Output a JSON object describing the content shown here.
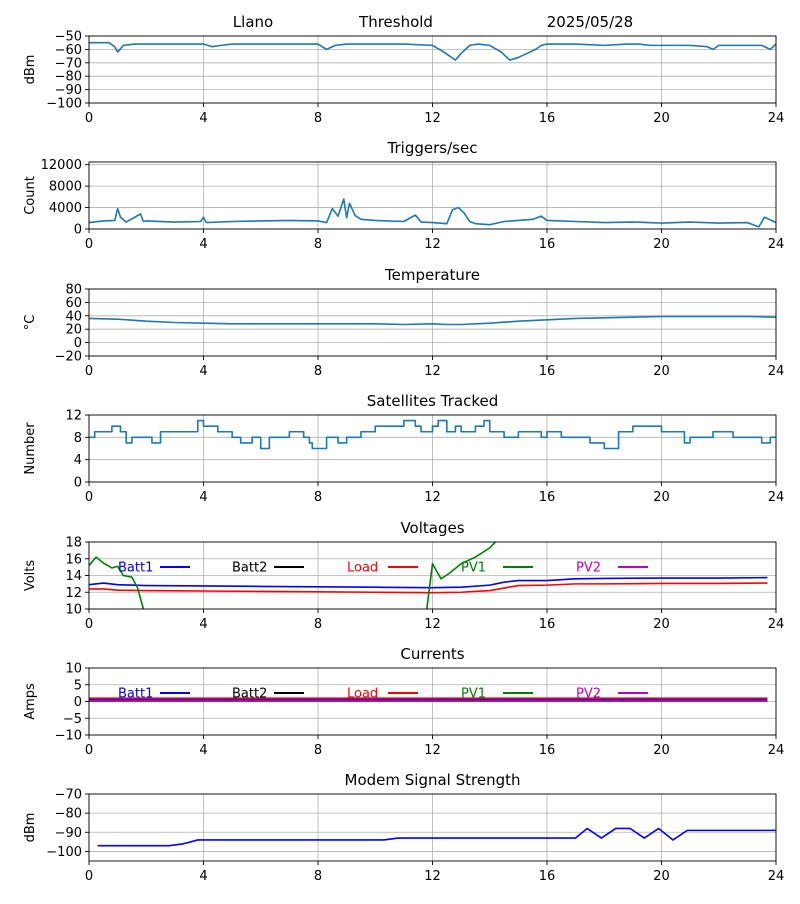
{
  "colors": {
    "default_series": "#1f77b4",
    "batt1": "#0000ff",
    "batt2": "#000000",
    "load": "#ff0000",
    "pv1": "#008000",
    "pv2": "#bf00bf",
    "grid": "#b0b0b0"
  },
  "header": {
    "site": "Llano",
    "label": "Threshold",
    "date": "2025/05/28"
  },
  "chart_data": [
    {
      "id": "threshold",
      "type": "line",
      "title": "",
      "xlabel": "",
      "ylabel": "dBm",
      "xlim": [
        0,
        24
      ],
      "ylim": [
        -100,
        -50
      ],
      "xticks": [
        0,
        4,
        8,
        12,
        16,
        20,
        24
      ],
      "yticks": [
        -100,
        -90,
        -80,
        -70,
        -60,
        -50
      ],
      "grid": true,
      "series": [
        {
          "color": "#1f77b4",
          "x": [
            0,
            0.7,
            0.9,
            1.0,
            1.2,
            1.6,
            2.0,
            4.0,
            4.3,
            4.6,
            5.0,
            7.0,
            8.0,
            8.3,
            8.6,
            9.0,
            10.0,
            11.0,
            12.0,
            12.4,
            12.8,
            13.0,
            13.3,
            13.6,
            14.0,
            14.4,
            14.7,
            15.0,
            15.3,
            15.6,
            15.8,
            16.0,
            17.0,
            18.0,
            18.8,
            19.2,
            19.6,
            20.0,
            21.0,
            21.6,
            21.8,
            22.0,
            23.0,
            23.5,
            23.8,
            24.0
          ],
          "y": [
            -55,
            -55,
            -58,
            -62,
            -57,
            -56,
            -56,
            -56,
            -58,
            -57,
            -56,
            -56,
            -56,
            -60,
            -57,
            -56,
            -56,
            -56,
            -57,
            -62,
            -68,
            -63,
            -57,
            -56,
            -57,
            -62,
            -68,
            -66,
            -63,
            -60,
            -57,
            -56,
            -56,
            -57,
            -56,
            -56,
            -57,
            -57,
            -57,
            -58,
            -60,
            -57,
            -57,
            -57,
            -60,
            -56
          ]
        }
      ]
    },
    {
      "id": "triggers",
      "type": "line",
      "title": "Triggers/sec",
      "xlabel": "",
      "ylabel": "Count",
      "xlim": [
        0,
        24
      ],
      "ylim": [
        0,
        12500
      ],
      "xticks": [
        0,
        4,
        8,
        12,
        16,
        20,
        24
      ],
      "yticks": [
        0,
        4000,
        8000,
        12000
      ],
      "grid": true,
      "series": [
        {
          "color": "#1f77b4",
          "x": [
            0,
            0.5,
            0.9,
            1.0,
            1.1,
            1.3,
            1.8,
            1.9,
            2.0,
            3.0,
            3.9,
            4.0,
            4.1,
            5.0,
            6.0,
            7.0,
            8.0,
            8.3,
            8.5,
            8.7,
            8.9,
            9.0,
            9.1,
            9.3,
            9.5,
            10.0,
            11.0,
            11.4,
            11.6,
            12.0,
            12.5,
            12.7,
            12.9,
            13.1,
            13.3,
            13.5,
            14.0,
            14.5,
            15.0,
            15.5,
            15.8,
            16.0,
            17.0,
            18.0,
            19.0,
            20.0,
            21.0,
            22.0,
            23.0,
            23.4,
            23.6,
            24.0
          ],
          "y": [
            1200,
            1500,
            1600,
            3800,
            2200,
            1300,
            2800,
            1400,
            1500,
            1300,
            1400,
            2200,
            1200,
            1400,
            1500,
            1600,
            1500,
            1200,
            3800,
            2400,
            5600,
            2100,
            4800,
            2500,
            1800,
            1600,
            1400,
            2600,
            1300,
            1200,
            1000,
            3600,
            4000,
            3000,
            1400,
            1000,
            800,
            1400,
            1600,
            1800,
            2400,
            1600,
            1400,
            1200,
            1300,
            1100,
            1300,
            1100,
            1200,
            400,
            2200,
            1200
          ]
        }
      ]
    },
    {
      "id": "temperature",
      "type": "line",
      "title": "Temperature",
      "xlabel": "",
      "ylabel": "°C",
      "xlim": [
        0,
        24
      ],
      "ylim": [
        -20,
        80
      ],
      "xticks": [
        0,
        4,
        8,
        12,
        16,
        20,
        24
      ],
      "yticks": [
        -20,
        0,
        20,
        40,
        60,
        80
      ],
      "grid": true,
      "series": [
        {
          "color": "#1f77b4",
          "x": [
            0,
            1.0,
            2.0,
            3.0,
            4.0,
            5.0,
            6.0,
            7.0,
            8.0,
            9.0,
            10.0,
            11.0,
            12.0,
            12.5,
            13.0,
            14.0,
            15.0,
            16.0,
            17.0,
            18.0,
            19.0,
            20.0,
            21.0,
            22.0,
            23.0,
            24.0
          ],
          "y": [
            36,
            35,
            32,
            30,
            29,
            28,
            28,
            28,
            28,
            28,
            28,
            27,
            28,
            27,
            27,
            29,
            32,
            34,
            36,
            37,
            38,
            39,
            39,
            39,
            39,
            38
          ]
        }
      ]
    },
    {
      "id": "satellites",
      "type": "line",
      "title": "Satellites Tracked",
      "xlabel": "",
      "ylabel": "Number",
      "xlim": [
        0,
        24
      ],
      "ylim": [
        0,
        12
      ],
      "xticks": [
        0,
        4,
        8,
        12,
        16,
        20,
        24
      ],
      "yticks": [
        0,
        4,
        8,
        12
      ],
      "grid": true,
      "step": true,
      "series": [
        {
          "color": "#1f77b4",
          "x": [
            0,
            0.2,
            0.8,
            1.1,
            1.3,
            1.5,
            2.2,
            2.5,
            3.5,
            3.8,
            4.0,
            4.5,
            5.0,
            5.3,
            5.7,
            6.0,
            6.3,
            6.5,
            7.0,
            7.5,
            7.7,
            7.8,
            8.3,
            8.7,
            9.0,
            9.5,
            10.0,
            10.5,
            11.0,
            11.4,
            11.6,
            12.0,
            12.2,
            12.5,
            12.8,
            13.0,
            13.5,
            13.8,
            14.0,
            14.5,
            15.0,
            15.5,
            15.8,
            16.0,
            16.5,
            17.0,
            17.5,
            18.0,
            18.5,
            19.0,
            19.5,
            20.0,
            20.5,
            20.8,
            21.0,
            21.5,
            21.8,
            22.0,
            22.5,
            23.0,
            23.5,
            23.8,
            24.0
          ],
          "y": [
            8,
            9,
            10,
            9,
            7,
            8,
            7,
            9,
            9,
            11,
            10,
            9,
            8,
            7,
            8,
            6,
            8,
            8,
            9,
            8,
            7,
            6,
            8,
            7,
            8,
            9,
            10,
            10,
            11,
            10,
            9,
            10,
            11,
            9,
            10,
            9,
            10,
            11,
            9,
            8,
            9,
            9,
            8,
            9,
            8,
            8,
            7,
            6,
            9,
            10,
            10,
            9,
            9,
            7,
            8,
            8,
            9,
            9,
            8,
            8,
            7,
            8,
            8
          ]
        }
      ]
    },
    {
      "id": "voltages",
      "type": "line",
      "title": "Voltages",
      "xlabel": "",
      "ylabel": "Volts",
      "xlim": [
        0,
        24
      ],
      "ylim": [
        10,
        18
      ],
      "xticks": [
        0,
        4,
        8,
        12,
        16,
        20,
        24
      ],
      "yticks": [
        10,
        12,
        14,
        16,
        18
      ],
      "grid": true,
      "legend_placement": "top, inline",
      "series": [
        {
          "name": "Batt1",
          "color": "#0000ff",
          "x": [
            0,
            0.5,
            1.0,
            2.0,
            4.0,
            6.0,
            8.0,
            10.0,
            12.0,
            13.0,
            14.0,
            14.5,
            15.0,
            16.0,
            17.0,
            18.0,
            20.0,
            22.0,
            23.7
          ],
          "y": [
            12.9,
            13.1,
            12.9,
            12.8,
            12.75,
            12.7,
            12.65,
            12.6,
            12.55,
            12.6,
            12.85,
            13.2,
            13.4,
            13.4,
            13.6,
            13.65,
            13.7,
            13.7,
            13.75
          ]
        },
        {
          "name": "Batt2",
          "color": "#000000",
          "x": [],
          "y": []
        },
        {
          "name": "Load",
          "color": "#ff0000",
          "x": [
            0,
            0.5,
            1.0,
            2.0,
            4.0,
            6.0,
            8.0,
            10.0,
            12.0,
            13.0,
            14.0,
            14.5,
            15.0,
            16.0,
            17.0,
            18.0,
            20.0,
            22.0,
            23.7
          ],
          "y": [
            12.4,
            12.4,
            12.25,
            12.2,
            12.15,
            12.1,
            12.05,
            12.0,
            11.95,
            12.0,
            12.2,
            12.5,
            12.8,
            12.85,
            13.0,
            13.0,
            13.05,
            13.05,
            13.1
          ]
        },
        {
          "name": "PV1",
          "color": "#008000",
          "x": [
            0,
            0.25,
            0.5,
            0.8,
            1.0,
            1.2,
            1.5,
            1.7,
            1.9,
            1.95,
            2.0,
            11.7,
            11.8,
            12.0,
            12.3,
            12.6,
            13.0,
            13.5,
            14.0,
            14.2
          ],
          "y": [
            15.2,
            16.2,
            15.5,
            14.9,
            15.1,
            14.0,
            13.8,
            12.5,
            10.0,
            9.5,
            9.0,
            9.0,
            10.0,
            15.4,
            13.6,
            14.3,
            15.4,
            16.2,
            17.3,
            18.0
          ]
        },
        {
          "name": "PV2",
          "color": "#bf00bf",
          "x": [],
          "y": []
        }
      ]
    },
    {
      "id": "currents",
      "type": "line",
      "title": "Currents",
      "xlabel": "",
      "ylabel": "Amps",
      "xlim": [
        0,
        24
      ],
      "ylim": [
        -10,
        10
      ],
      "xticks": [
        0,
        4,
        8,
        12,
        16,
        20,
        24
      ],
      "yticks": [
        -10,
        -5,
        0,
        5,
        10
      ],
      "grid": true,
      "legend_placement": "top, inline",
      "series": [
        {
          "name": "Batt1",
          "color": "#0000ff",
          "x": [
            0,
            23.7
          ],
          "y": [
            0.5,
            0.5
          ]
        },
        {
          "name": "Batt2",
          "color": "#000000",
          "x": [],
          "y": []
        },
        {
          "name": "Load",
          "color": "#ff0000",
          "x": [
            0,
            23.7
          ],
          "y": [
            1.0,
            1.0
          ]
        },
        {
          "name": "PV1",
          "color": "#008000",
          "x": [
            0,
            23.7
          ],
          "y": [
            0.2,
            0.2
          ]
        },
        {
          "name": "PV2",
          "color": "#bf00bf",
          "x": [
            0,
            23.7
          ],
          "y": [
            0.1,
            0.1
          ]
        }
      ]
    },
    {
      "id": "modem",
      "type": "line",
      "title": "Modem Signal Strength",
      "xlabel": "",
      "ylabel": "dBm",
      "xlim": [
        0,
        24
      ],
      "ylim": [
        -105,
        -70
      ],
      "xticks": [
        0,
        4,
        8,
        12,
        16,
        20,
        24
      ],
      "yticks": [
        -100,
        -90,
        -80,
        -70
      ],
      "grid": true,
      "series": [
        {
          "color": "#0000ff",
          "x": [
            0.3,
            2.8,
            3.3,
            3.8,
            10.3,
            10.8,
            17.0,
            17.4,
            17.9,
            18.4,
            18.9,
            19.4,
            19.9,
            20.4,
            20.9,
            24.0
          ],
          "y": [
            -97,
            -97,
            -96,
            -94,
            -94,
            -93,
            -93,
            -88,
            -93,
            -88,
            -88,
            -93,
            -88,
            -94,
            -89,
            -89
          ]
        }
      ]
    }
  ]
}
